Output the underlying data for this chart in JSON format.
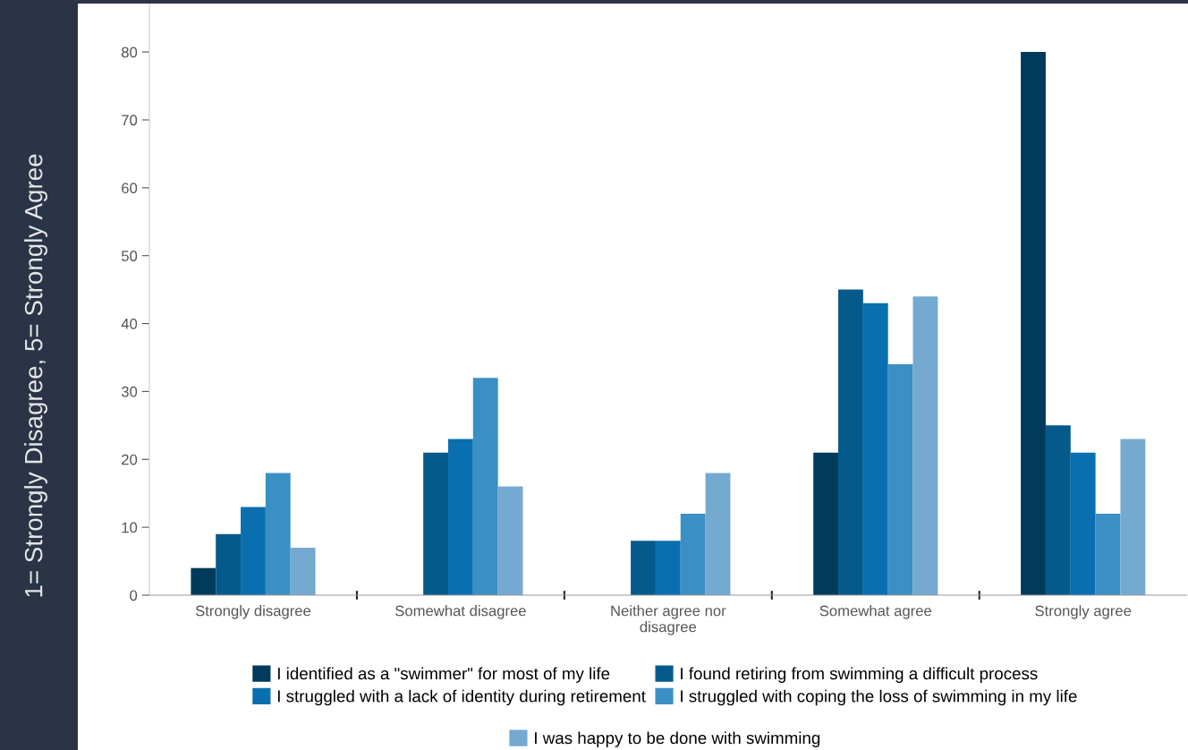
{
  "chart_data": {
    "type": "bar",
    "ylabel": "1= Strongly Disagree, 5= Strongly Agree",
    "categories": [
      "Strongly disagree",
      "Somewhat disagree",
      "Neither agree nor\ndisagree",
      "Somewhat agree",
      "Strongly agree"
    ],
    "series": [
      {
        "name": "I identified as a \"swimmer\" for most of my life",
        "color": "#003a5c",
        "values": [
          4,
          0,
          0,
          21,
          80
        ]
      },
      {
        "name": "I found retiring from swimming a difficult process",
        "color": "#055a8c",
        "values": [
          9,
          21,
          8,
          45,
          25
        ]
      },
      {
        "name": "I struggled with a lack of identity during retirement",
        "color": "#0a6faf",
        "values": [
          13,
          23,
          8,
          43,
          21
        ]
      },
      {
        "name": "I struggled with coping the loss of swimming in my life",
        "color": "#3a8fc4",
        "values": [
          18,
          32,
          12,
          34,
          12
        ]
      },
      {
        "name": "I was happy to be done with swimming",
        "color": "#74a9d0",
        "values": [
          7,
          16,
          18,
          44,
          23
        ]
      }
    ],
    "ylim": [
      0,
      87
    ],
    "yticks": [
      0,
      10,
      20,
      30,
      40,
      50,
      60,
      70,
      80
    ],
    "grid": false,
    "legend": "bottom"
  }
}
